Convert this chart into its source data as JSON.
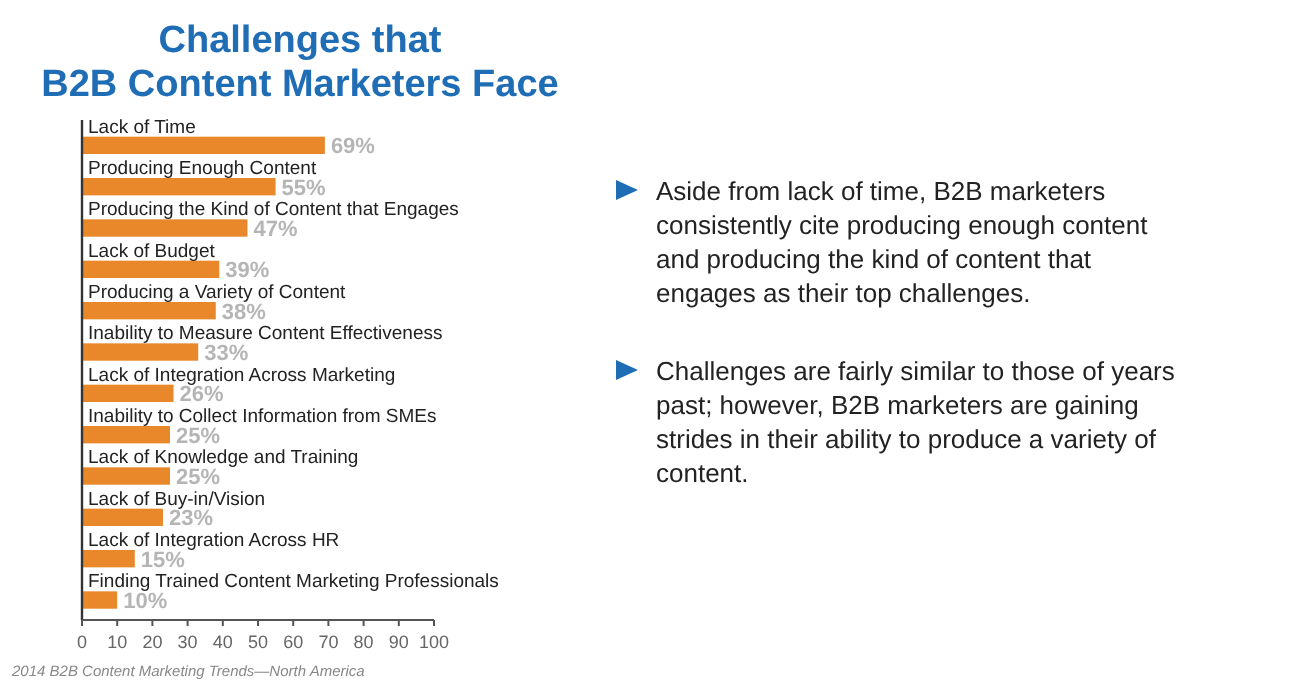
{
  "chart_data": {
    "type": "bar",
    "orientation": "horizontal",
    "title": "Challenges that\nB2B Content Marketers Face",
    "categories": [
      "Lack of Time",
      "Producing Enough Content",
      "Producing the Kind of Content that Engages",
      "Lack of Budget",
      "Producing a Variety of Content",
      "Inability to Measure Content Effectiveness",
      "Lack of Integration Across Marketing",
      "Inability to Collect Information from SMEs",
      "Lack of Knowledge and Training",
      "Lack of Buy-in/Vision",
      "Lack of Integration Across HR",
      "Finding Trained Content Marketing Professionals"
    ],
    "values": [
      69,
      55,
      47,
      39,
      38,
      33,
      26,
      25,
      25,
      23,
      15,
      10
    ],
    "value_labels": [
      "69%",
      "55%",
      "47%",
      "39%",
      "38%",
      "33%",
      "26%",
      "25%",
      "25%",
      "23%",
      "15%",
      "10%"
    ],
    "color": "#e8882a",
    "xlim": [
      0,
      100
    ],
    "xticks": [
      0,
      10,
      20,
      30,
      40,
      50,
      60,
      70,
      80,
      90,
      100
    ],
    "grid": false,
    "annotations": [
      "Aside from lack of time, B2B marketers consistently cite producing enough content and producing the kind of content that engages as their top challenges.",
      "Challenges are fairly similar to those of years past; however, B2B marketers are gaining strides in their ability to produce a variety of content.",
      "2014 B2B Content Marketing Trends—North America"
    ]
  }
}
